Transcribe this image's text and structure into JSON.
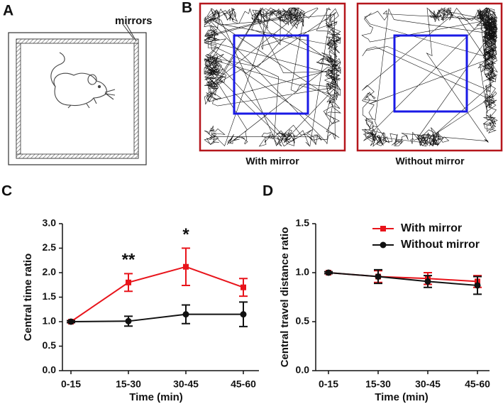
{
  "panel_a": {
    "label": "A",
    "callout": "mirrors"
  },
  "panel_b": {
    "label": "B",
    "captions": [
      "With mirror",
      "Without mirror"
    ]
  },
  "chart_data": [
    {
      "type": "line",
      "panel_label": "C",
      "x_label": "Time (min)",
      "y_label": "Central time ratio",
      "categories": [
        "0-15",
        "15-30",
        "30-45",
        "45-60"
      ],
      "series": [
        {
          "color": "#e8141b",
          "marker": "square",
          "values": [
            1.0,
            1.8,
            2.12,
            1.7
          ],
          "errors": [
            0.02,
            0.18,
            0.38,
            0.18
          ]
        },
        {
          "color": "#111111",
          "marker": "circle",
          "values": [
            1.0,
            1.01,
            1.15,
            1.15
          ],
          "errors": [
            0.02,
            0.1,
            0.19,
            0.25
          ]
        }
      ],
      "annotations": [
        {
          "text": "**",
          "x": "15-30"
        },
        {
          "text": "*",
          "x": "30-45"
        }
      ],
      "ylim": [
        0,
        3
      ],
      "yticks": [
        {
          "value": 0,
          "label": "0.0"
        },
        0.5,
        {
          "value": 1,
          "label": "1.0"
        },
        1.5,
        {
          "value": 2,
          "label": "2.0"
        },
        2.5,
        {
          "value": 3,
          "label": "3.0"
        }
      ],
      "legend": false
    },
    {
      "type": "line",
      "panel_label": "D",
      "x_label": "Time (min)",
      "y_label": "Central travel distance ratio",
      "categories": [
        "0-15",
        "15-30",
        "30-45",
        "45-60"
      ],
      "series": [
        {
          "name": "With mirror",
          "color": "#e8141b",
          "marker": "square",
          "values": [
            1.0,
            0.96,
            0.94,
            0.91
          ],
          "errors": [
            0.01,
            0.06,
            0.06,
            0.06
          ]
        },
        {
          "name": "Without mirror",
          "color": "#111111",
          "marker": "circle",
          "values": [
            1.0,
            0.96,
            0.91,
            0.87
          ],
          "errors": [
            0.01,
            0.07,
            0.06,
            0.09
          ]
        }
      ],
      "ylim": [
        0,
        1.5
      ],
      "yticks": [
        {
          "value": 0,
          "label": "0.0"
        },
        0.5,
        {
          "value": 1,
          "label": "1.0"
        },
        1.5
      ],
      "legend": "top-right"
    }
  ]
}
